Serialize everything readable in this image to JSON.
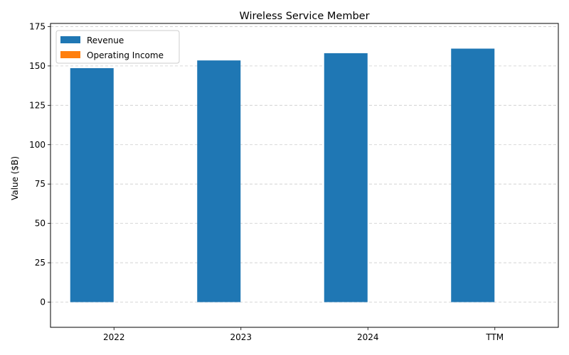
{
  "chart_data": {
    "type": "bar",
    "title": "Wireless Service Member",
    "xlabel": "",
    "ylabel": "Value ($B)",
    "categories": [
      "2022",
      "2023",
      "2024",
      "TTM"
    ],
    "series": [
      {
        "name": "Revenue",
        "color": "#1f77b4",
        "values": [
          148.6,
          153.5,
          158.1,
          161.0
        ]
      },
      {
        "name": "Operating Income",
        "color": "#ff7f0e",
        "values": [
          0,
          0,
          0,
          0
        ]
      }
    ],
    "ylim": [
      -16,
      177
    ],
    "yticks": [
      0,
      25,
      50,
      75,
      100,
      125,
      150,
      175
    ],
    "grid": true,
    "legend_position": "top-left"
  }
}
